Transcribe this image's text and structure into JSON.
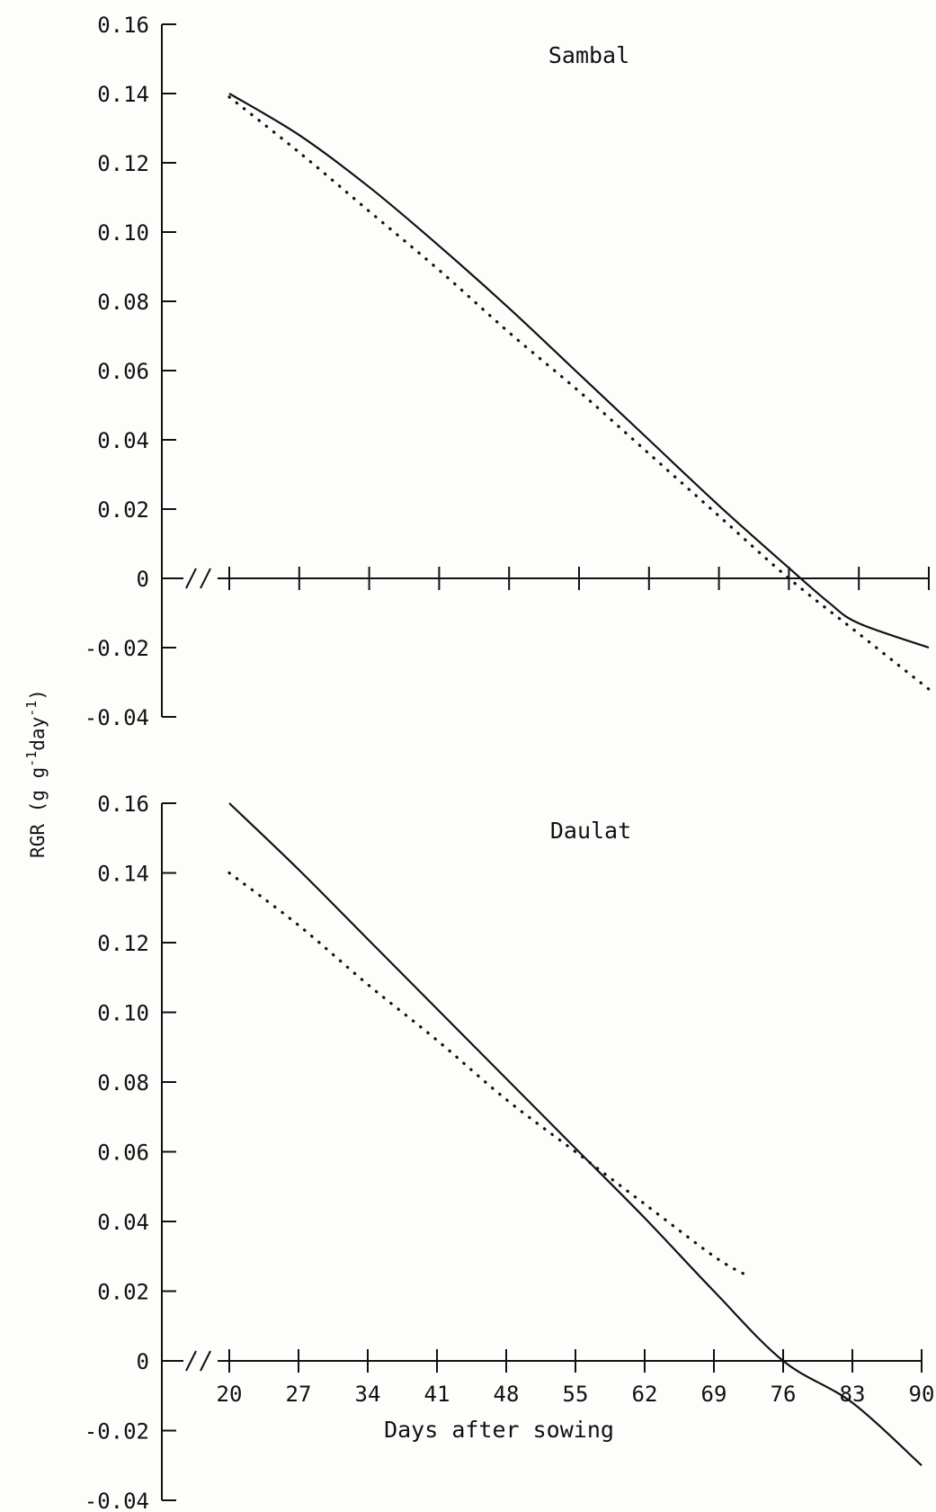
{
  "figure": {
    "ylabel_main": "RGR (g g",
    "ylabel_sup1": "-1",
    "ylabel_mid": "day",
    "ylabel_sup2": "-1",
    "ylabel_end": ")",
    "xlabel": "Days after sowing"
  },
  "chart_data": [
    {
      "type": "line",
      "title": "Sambal",
      "xlabel": "",
      "ylabel": "RGR (g g-1 day-1)",
      "x_ticks": [
        20,
        27,
        34,
        41,
        48,
        55,
        62,
        69,
        76,
        83,
        90
      ],
      "x_tick_labels_shown": false,
      "y_ticks": [
        "0.16",
        "0.14",
        "0.12",
        "0.10",
        "0.08",
        "0.06",
        "0.04",
        "0.02",
        "0",
        "-0.02",
        "-0.04"
      ],
      "xlim": [
        20,
        90
      ],
      "ylim": [
        -0.04,
        0.16
      ],
      "x_axis_break": true,
      "grid": false,
      "series": [
        {
          "style": "solid",
          "x": [
            20,
            27,
            34,
            41,
            48,
            55,
            62,
            69,
            76,
            80,
            83,
            90
          ],
          "y": [
            0.14,
            0.128,
            0.113,
            0.096,
            0.078,
            0.059,
            0.04,
            0.021,
            0.003,
            -0.007,
            -0.013,
            -0.02
          ]
        },
        {
          "style": "dotted",
          "x": [
            20,
            27,
            34,
            41,
            48,
            55,
            62,
            69,
            76,
            83,
            90
          ],
          "y": [
            0.139,
            0.123,
            0.106,
            0.089,
            0.071,
            0.054,
            0.036,
            0.018,
            0.0,
            -0.016,
            -0.032
          ]
        }
      ]
    },
    {
      "type": "line",
      "title": "Daulat",
      "xlabel": "Days after sowing",
      "ylabel": "RGR (g g-1 day-1)",
      "x_ticks": [
        20,
        27,
        34,
        41,
        48,
        55,
        62,
        69,
        76,
        83,
        90
      ],
      "x_tick_labels": [
        "20",
        "27",
        "34",
        "41",
        "48",
        "55",
        "62",
        "69",
        "76",
        "83",
        "90"
      ],
      "y_ticks": [
        "0.16",
        "0.14",
        "0.12",
        "0.10",
        "0.08",
        "0.06",
        "0.04",
        "0.02",
        "0",
        "-0.02",
        "-0.04"
      ],
      "xlim": [
        20,
        90
      ],
      "ylim": [
        -0.04,
        0.16
      ],
      "x_axis_break": true,
      "grid": false,
      "series": [
        {
          "style": "solid",
          "x": [
            20,
            27,
            34,
            41,
            48,
            55,
            62,
            69,
            76,
            83,
            90
          ],
          "y": [
            0.16,
            0.141,
            0.121,
            0.101,
            0.081,
            0.061,
            0.041,
            0.02,
            0.0,
            -0.012,
            -0.03
          ]
        },
        {
          "style": "dotted",
          "x": [
            20,
            27,
            34,
            41,
            48,
            55,
            62,
            69,
            72
          ],
          "y": [
            0.14,
            0.125,
            0.108,
            0.092,
            0.075,
            0.06,
            0.045,
            0.03,
            0.025
          ]
        }
      ]
    }
  ]
}
